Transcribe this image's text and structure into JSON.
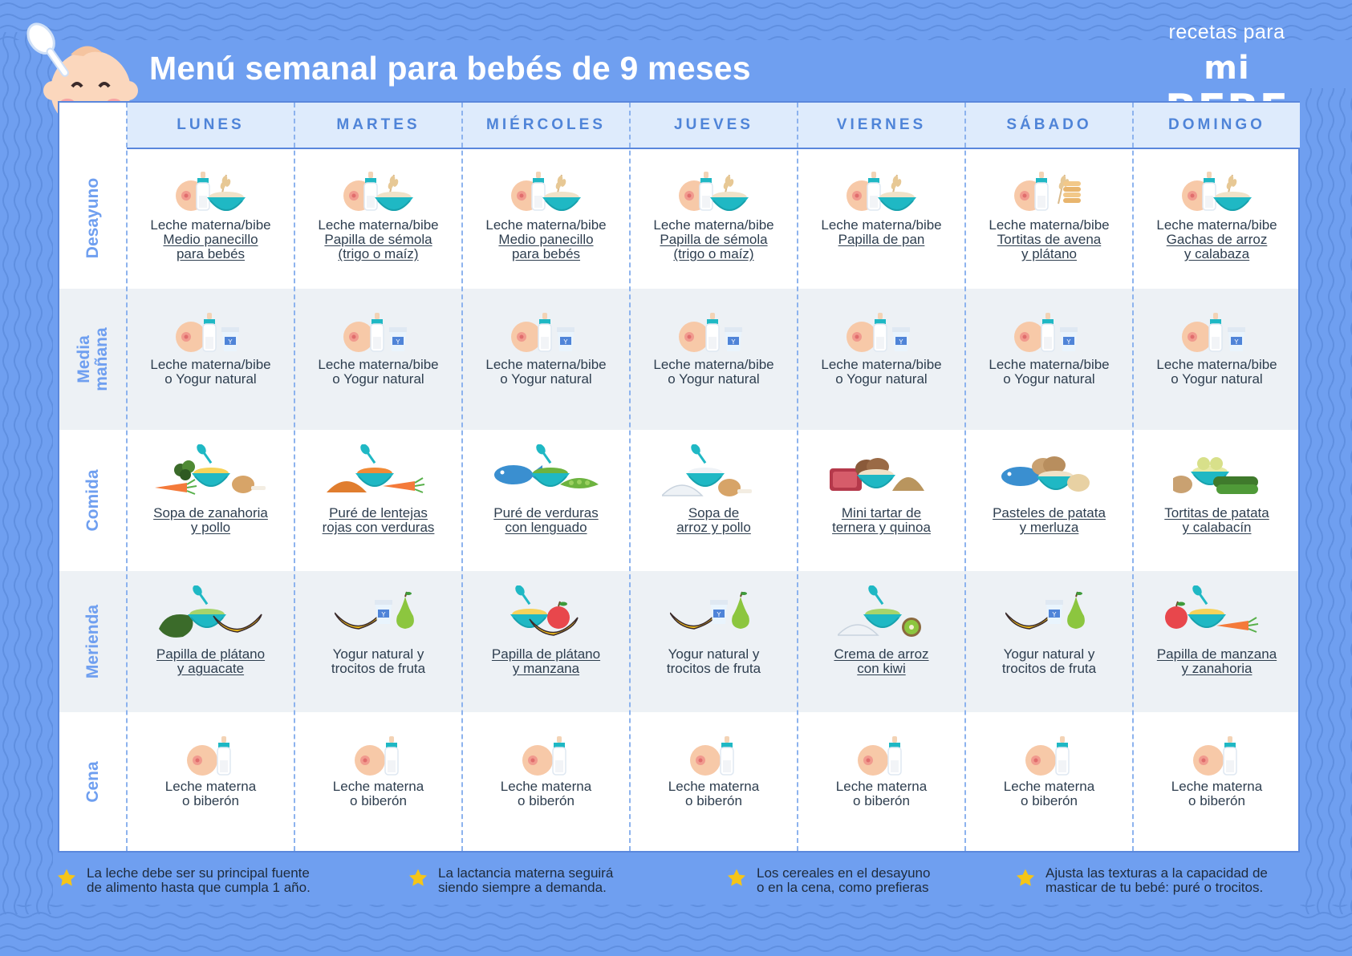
{
  "header": {
    "title": "Menú semanal para bebés de 9 meses",
    "brand_top": "recetas para",
    "brand_mi": "mi",
    "brand_bebe": "BEBE"
  },
  "days": [
    "LUNES",
    "MARTES",
    "MIÉRCOLES",
    "JUEVES",
    "VIERNES",
    "SÁBADO",
    "DOMINGO"
  ],
  "rows": [
    {
      "label": "Desayuno",
      "cells": [
        {
          "line1": "Leche materna/bibe",
          "line2": "Medio panecillo",
          "line3": "para bebés",
          "icon": "breastmilk-bottle-cereal-icon"
        },
        {
          "line1": "Leche materna/bibe",
          "line2": "Papilla de sémola",
          "line3": "(trigo o maíz)",
          "icon": "breastmilk-bottle-cereal-icon"
        },
        {
          "line1": "Leche materna/bibe",
          "line2": "Medio panecillo",
          "line3": "para bebés",
          "icon": "breastmilk-bottle-cereal-icon"
        },
        {
          "line1": "Leche materna/bibe",
          "line2": "Papilla de sémola",
          "line3": "(trigo o maíz)",
          "icon": "breastmilk-bottle-cereal-icon"
        },
        {
          "line1": "Leche materna/bibe",
          "line2": "Papilla de pan",
          "line3": "",
          "icon": "breastmilk-bottle-cereal-icon"
        },
        {
          "line1": "Leche materna/bibe",
          "line2": "Tortitas de avena",
          "line3": "y plátano",
          "icon": "breastmilk-bottle-pancakes-icon"
        },
        {
          "line1": "Leche materna/bibe",
          "line2": "Gachas de arroz",
          "line3": "y calabaza",
          "icon": "breastmilk-bottle-cereal-icon"
        }
      ]
    },
    {
      "label_line1": "Media",
      "label_line2": "mañana",
      "cells": [
        {
          "line1": "Leche materna/bibe",
          "line2": "o Yogur natural",
          "icon": "breastmilk-bottle-yogurt-icon"
        },
        {
          "line1": "Leche materna/bibe",
          "line2": "o Yogur natural",
          "icon": "breastmilk-bottle-yogurt-icon"
        },
        {
          "line1": "Leche materna/bibe",
          "line2": "o Yogur natural",
          "icon": "breastmilk-bottle-yogurt-icon"
        },
        {
          "line1": "Leche materna/bibe",
          "line2": "o Yogur natural",
          "icon": "breastmilk-bottle-yogurt-icon"
        },
        {
          "line1": "Leche materna/bibe",
          "line2": "o Yogur natural",
          "icon": "breastmilk-bottle-yogurt-icon"
        },
        {
          "line1": "Leche materna/bibe",
          "line2": "o Yogur natural",
          "icon": "breastmilk-bottle-yogurt-icon"
        },
        {
          "line1": "Leche materna/bibe",
          "line2": "o Yogur natural",
          "icon": "breastmilk-bottle-yogurt-icon"
        }
      ]
    },
    {
      "label": "Comida",
      "cells": [
        {
          "line1": "Sopa de zanahoria",
          "line2": "y pollo",
          "icon": "carrot-chicken-soup-icon"
        },
        {
          "line1": "Puré de lentejas",
          "line2": "rojas con verduras",
          "icon": "lentil-puree-icon"
        },
        {
          "line1": "Puré de verduras",
          "line2": "con lenguado",
          "icon": "fish-vegetable-puree-icon"
        },
        {
          "line1": "Sopa de",
          "line2": "arroz y pollo",
          "icon": "rice-chicken-soup-icon"
        },
        {
          "line1": "Mini tartar de",
          "line2": "ternera y quinoa",
          "icon": "beef-quinoa-icon"
        },
        {
          "line1": "Pasteles de patata",
          "line2": "y merluza",
          "icon": "fish-potato-icon"
        },
        {
          "line1": "Tortitas de patata",
          "line2": "y calabacín",
          "icon": "potato-zucchini-icon"
        }
      ]
    },
    {
      "label": "Merienda",
      "cells": [
        {
          "line1": "Papilla de plátano",
          "line2": "y aguacate",
          "underline": true,
          "icon": "banana-avocado-puree-icon"
        },
        {
          "line1": "Yogur natural y",
          "line2": "trocitos de fruta",
          "underline": false,
          "icon": "yogurt-fruit-icon"
        },
        {
          "line1": "Papilla de plátano",
          "line2": "y manzana",
          "underline": true,
          "icon": "banana-apple-puree-icon"
        },
        {
          "line1": "Yogur natural y",
          "line2": "trocitos de fruta",
          "underline": false,
          "icon": "yogurt-fruit-icon"
        },
        {
          "line1": "Crema de arroz",
          "line2": "con kiwi",
          "underline": true,
          "icon": "rice-kiwi-cream-icon"
        },
        {
          "line1": "Yogur natural y",
          "line2": "trocitos de fruta",
          "underline": false,
          "icon": "yogurt-fruit-icon"
        },
        {
          "line1": "Papilla de manzana",
          "line2": "y zanahoria",
          "underline": true,
          "icon": "apple-carrot-puree-icon"
        }
      ]
    },
    {
      "label": "Cena",
      "cells": [
        {
          "line1": "Leche materna",
          "line2": "o biberón",
          "icon": "breastmilk-bottle-icon"
        },
        {
          "line1": "Leche materna",
          "line2": "o biberón",
          "icon": "breastmilk-bottle-icon"
        },
        {
          "line1": "Leche materna",
          "line2": "o biberón",
          "icon": "breastmilk-bottle-icon"
        },
        {
          "line1": "Leche materna",
          "line2": "o biberón",
          "icon": "breastmilk-bottle-icon"
        },
        {
          "line1": "Leche materna",
          "line2": "o biberón",
          "icon": "breastmilk-bottle-icon"
        },
        {
          "line1": "Leche materna",
          "line2": "o biberón",
          "icon": "breastmilk-bottle-icon"
        },
        {
          "line1": "Leche materna",
          "line2": "o biberón",
          "icon": "breastmilk-bottle-icon"
        }
      ]
    }
  ],
  "notes": [
    {
      "line1": "La leche debe ser su principal fuente",
      "line2": "de alimento hasta que cumpla 1 año."
    },
    {
      "line1": "La lactancia materna seguirá",
      "line2": "siendo siempre a demanda."
    },
    {
      "line1": "Los cereales en el desayuno",
      "line2": "o en la cena, como prefieras"
    },
    {
      "line1": "Ajusta las texturas a la capacidad de",
      "line2": "masticar de tu bebé: puré o trocitos."
    }
  ],
  "colors": {
    "background": "#6f9ff0",
    "header_row": "#deebfc",
    "day_text": "#4f84d8",
    "alt_row": "#edf1f5",
    "teal": "#1fb8c4",
    "star": "#f5c518"
  }
}
